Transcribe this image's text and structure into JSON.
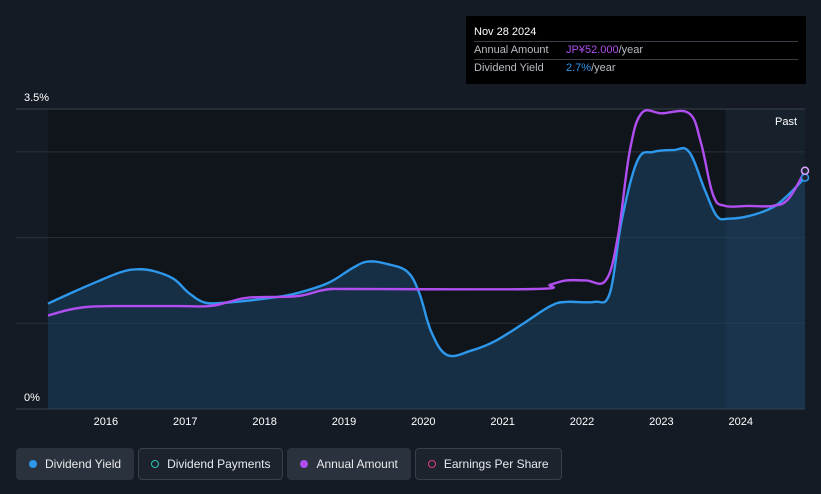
{
  "tooltip": {
    "date": "Nov 28 2024",
    "annual_label": "Annual Amount",
    "annual_value": "JP¥52.000",
    "annual_unit": "/year",
    "yield_label": "Dividend Yield",
    "yield_value": "2.7%",
    "yield_unit": "/year"
  },
  "legend": {
    "dividend_yield": "Dividend Yield",
    "dividend_payments": "Dividend Payments",
    "annual_amount": "Annual Amount",
    "earnings_per_share": "Earnings Per Share"
  },
  "colors": {
    "yield": "#2d98ec",
    "annual": "#b04ef0",
    "payments": "#2ec4b6",
    "eps": "#e83f79",
    "background": "#151b24",
    "plot_bg": "#0f141b"
  },
  "chart_data": {
    "type": "line",
    "y_axis": {
      "min": 0,
      "max": 3.5,
      "unit": "%",
      "tick_labels": [
        "0%",
        "3.5%"
      ]
    },
    "x_axis": {
      "min": 2015.37,
      "max": 2024.91,
      "ticks": [
        "2016",
        "2017",
        "2018",
        "2019",
        "2020",
        "2021",
        "2022",
        "2023",
        "2024"
      ]
    },
    "past_label": "Past",
    "past_start": 2023.91,
    "grid": true,
    "series": [
      {
        "name": "Dividend Yield",
        "color": "#2d98ec",
        "points": [
          [
            2015.37,
            1.23
          ],
          [
            2015.7,
            1.37
          ],
          [
            2016.0,
            1.49
          ],
          [
            2016.3,
            1.6
          ],
          [
            2016.5,
            1.63
          ],
          [
            2016.7,
            1.61
          ],
          [
            2016.95,
            1.52
          ],
          [
            2017.15,
            1.35
          ],
          [
            2017.35,
            1.24
          ],
          [
            2017.6,
            1.24
          ],
          [
            2017.85,
            1.26
          ],
          [
            2018.2,
            1.3
          ],
          [
            2018.5,
            1.35
          ],
          [
            2018.9,
            1.47
          ],
          [
            2019.2,
            1.64
          ],
          [
            2019.4,
            1.72
          ],
          [
            2019.65,
            1.69
          ],
          [
            2019.9,
            1.6
          ],
          [
            2020.05,
            1.35
          ],
          [
            2020.2,
            0.9
          ],
          [
            2020.4,
            0.63
          ],
          [
            2020.7,
            0.68
          ],
          [
            2021.0,
            0.79
          ],
          [
            2021.35,
            0.99
          ],
          [
            2021.7,
            1.2
          ],
          [
            2021.9,
            1.25
          ],
          [
            2022.25,
            1.25
          ],
          [
            2022.45,
            1.35
          ],
          [
            2022.6,
            2.2
          ],
          [
            2022.8,
            2.9
          ],
          [
            2023.0,
            3.0
          ],
          [
            2023.25,
            3.02
          ],
          [
            2023.45,
            3.0
          ],
          [
            2023.65,
            2.55
          ],
          [
            2023.8,
            2.25
          ],
          [
            2023.95,
            2.22
          ],
          [
            2024.2,
            2.25
          ],
          [
            2024.5,
            2.35
          ],
          [
            2024.7,
            2.5
          ],
          [
            2024.91,
            2.7
          ]
        ]
      },
      {
        "name": "Annual Amount",
        "color": "#b04ef0",
        "points": [
          [
            2015.37,
            1.09
          ],
          [
            2015.6,
            1.15
          ],
          [
            2015.85,
            1.19
          ],
          [
            2016.2,
            1.2
          ],
          [
            2017.0,
            1.2
          ],
          [
            2017.4,
            1.2
          ],
          [
            2017.65,
            1.25
          ],
          [
            2017.9,
            1.3
          ],
          [
            2018.4,
            1.31
          ],
          [
            2018.6,
            1.33
          ],
          [
            2018.8,
            1.38
          ],
          [
            2018.95,
            1.4
          ],
          [
            2019.2,
            1.4
          ],
          [
            2021.5,
            1.4
          ],
          [
            2021.7,
            1.45
          ],
          [
            2021.9,
            1.5
          ],
          [
            2022.15,
            1.5
          ],
          [
            2022.4,
            1.5
          ],
          [
            2022.55,
            2.0
          ],
          [
            2022.7,
            3.0
          ],
          [
            2022.85,
            3.45
          ],
          [
            2023.1,
            3.45
          ],
          [
            2023.45,
            3.45
          ],
          [
            2023.6,
            3.1
          ],
          [
            2023.75,
            2.5
          ],
          [
            2023.9,
            2.37
          ],
          [
            2024.2,
            2.37
          ],
          [
            2024.5,
            2.37
          ],
          [
            2024.7,
            2.45
          ],
          [
            2024.91,
            2.78
          ]
        ]
      }
    ]
  }
}
